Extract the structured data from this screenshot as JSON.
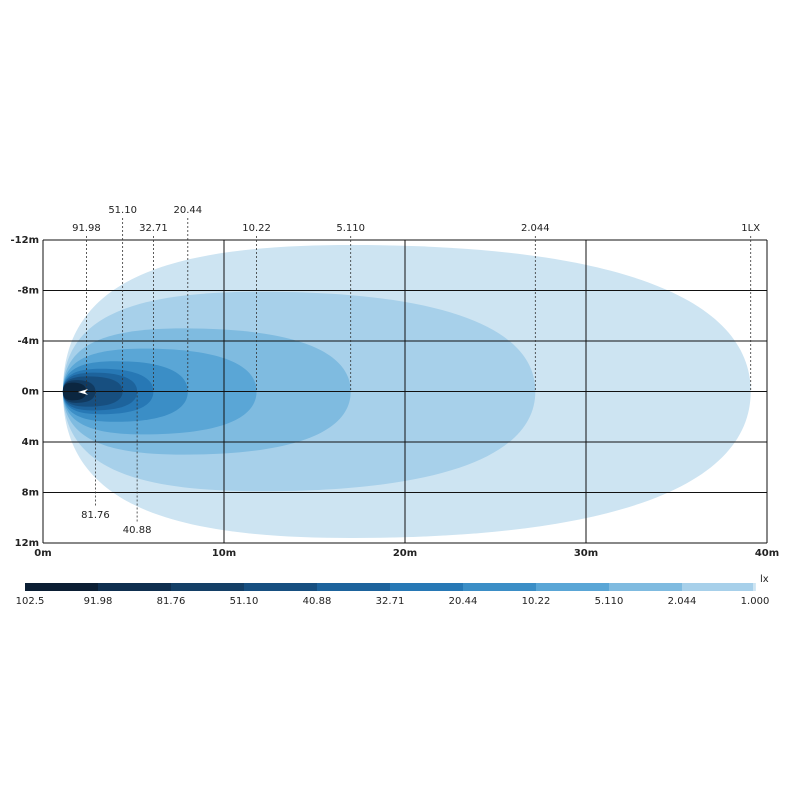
{
  "chart_data": {
    "type": "isolux",
    "xlim": [
      0,
      40
    ],
    "ylim": [
      -12,
      12
    ],
    "xticks": [
      {
        "value": 0,
        "label": "0m"
      },
      {
        "value": 10,
        "label": "10m"
      },
      {
        "value": 20,
        "label": "20m"
      },
      {
        "value": 30,
        "label": "30m"
      },
      {
        "value": 40,
        "label": "40m"
      }
    ],
    "yticks": [
      {
        "value": -12,
        "label": "-12m"
      },
      {
        "value": -8,
        "label": "-8m"
      },
      {
        "value": -4,
        "label": "-4m"
      },
      {
        "value": 0,
        "label": "0m"
      },
      {
        "value": 4,
        "label": "4m"
      },
      {
        "value": 8,
        "label": "8m"
      },
      {
        "value": 12,
        "label": "12m"
      }
    ],
    "grid": true,
    "contours": [
      {
        "label": "1LX",
        "side": "top",
        "reach": 39.1,
        "half_width": 11.6,
        "color": "#cde4f2"
      },
      {
        "label": "2.044",
        "side": "top",
        "reach": 27.2,
        "half_width": 7.9,
        "color": "#a7d0ea"
      },
      {
        "label": "5.110",
        "side": "top",
        "reach": 17.0,
        "half_width": 5.0,
        "color": "#7fbbe0"
      },
      {
        "label": "10.22",
        "side": "top",
        "reach": 11.8,
        "half_width": 3.4,
        "color": "#5aa6d6"
      },
      {
        "label": "20.44",
        "side": "top",
        "reach": 8.0,
        "half_width": 2.4,
        "color": "#3b8ec6"
      },
      {
        "label": "32.71",
        "side": "top",
        "reach": 6.1,
        "half_width": 1.8,
        "color": "#2778b5"
      },
      {
        "label": "40.88",
        "side": "bottom",
        "reach": 5.2,
        "half_width": 1.5,
        "color": "#1d639c"
      },
      {
        "label": "51.10",
        "side": "top",
        "reach": 4.4,
        "half_width": 1.2,
        "color": "#174f80"
      },
      {
        "label": "81.76",
        "side": "bottom",
        "reach": 2.9,
        "half_width": 0.9,
        "color": "#113a60"
      },
      {
        "label": "91.98",
        "side": "top",
        "reach": 2.4,
        "half_width": 0.7,
        "color": "#0b2640"
      }
    ],
    "legend": {
      "unit": "lx",
      "labels": [
        "102.5",
        "91.98",
        "81.76",
        "51.10",
        "40.88",
        "32.71",
        "20.44",
        "10.22",
        "5.110",
        "2.044",
        "1.000"
      ],
      "colors": [
        "#0b1e33",
        "#0f2f4f",
        "#143f66",
        "#174f80",
        "#1d639c",
        "#2778b5",
        "#3b8ec6",
        "#5aa6d6",
        "#7fbbe0",
        "#a7d0ea"
      ],
      "end_color": "#cde4f2"
    }
  }
}
